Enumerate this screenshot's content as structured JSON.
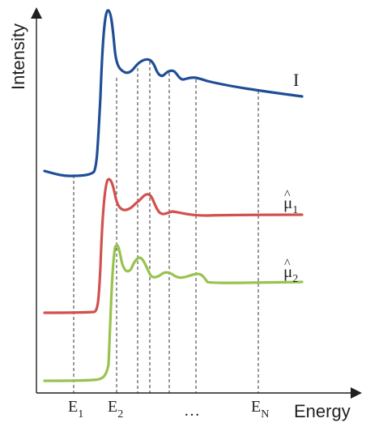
{
  "axes": {
    "y_title": "Intensity",
    "x_title": "Energy"
  },
  "energy_ticks": [
    {
      "base": "E",
      "sub": "1"
    },
    {
      "base": "E",
      "sub": "2"
    },
    {
      "base": "…",
      "sub": ""
    },
    {
      "base": "E",
      "sub": "N"
    }
  ],
  "curves": [
    {
      "label": "I",
      "sub": "",
      "hat": false,
      "color": "#1f4e96"
    },
    {
      "label": "μ",
      "sub": "1",
      "hat": true,
      "color": "#d1514f"
    },
    {
      "label": "μ",
      "sub": "2",
      "hat": true,
      "color": "#99c24d"
    }
  ],
  "colors": {
    "axis": "#231f20",
    "guide_lines": "#231f20"
  }
}
